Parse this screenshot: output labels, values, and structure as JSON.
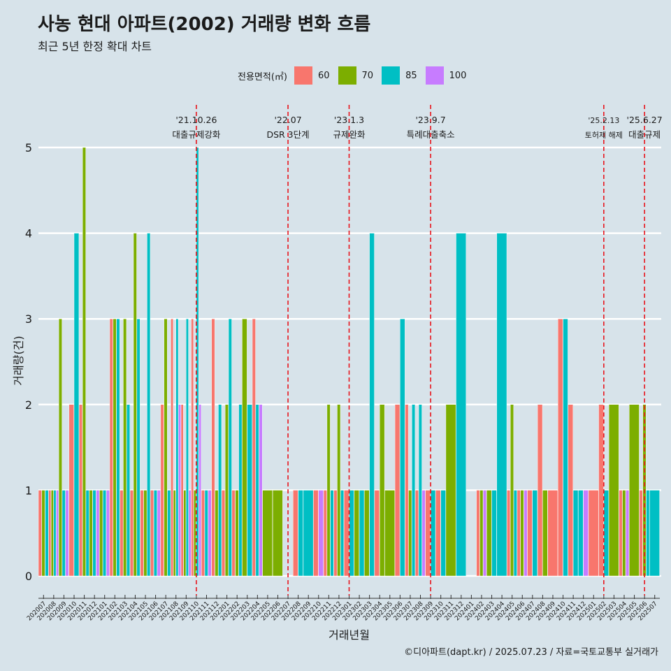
{
  "title": "사농 현대 아파트(2002) 거래량 변화 흐름",
  "subtitle": "최근 5년 한정 확대 차트",
  "footer": "©디아파트(dapt.kr) / 2025.07.23 / 자료=국토교통부 실거래가",
  "legend": {
    "title": "전용면적(㎡)",
    "items": [
      {
        "label": "60",
        "color": "#f8766d"
      },
      {
        "label": "70",
        "color": "#7cae00"
      },
      {
        "label": "85",
        "color": "#00bfc4"
      },
      {
        "label": "100",
        "color": "#c77cff"
      }
    ]
  },
  "chart_data": {
    "type": "bar",
    "xlabel": "거래년월",
    "ylabel": "거래량(건)",
    "ylim": [
      0,
      5
    ],
    "yticks": [
      0,
      1,
      2,
      3,
      4,
      5
    ],
    "months": [
      "202007",
      "202008",
      "202009",
      "202010",
      "202011",
      "202012",
      "202101",
      "202102",
      "202103",
      "202104",
      "202105",
      "202106",
      "202107",
      "202108",
      "202109",
      "202110",
      "202111",
      "202112",
      "202201",
      "202202",
      "202203",
      "202204",
      "202205",
      "202206",
      "202207",
      "202208",
      "202209",
      "202210",
      "202211",
      "202212",
      "202301",
      "202302",
      "202303",
      "202304",
      "202305",
      "202306",
      "202307",
      "202308",
      "202309",
      "202310",
      "202311",
      "202312",
      "202401",
      "202402",
      "202403",
      "202404",
      "202405",
      "202406",
      "202407",
      "202408",
      "202409",
      "202410",
      "202411",
      "202412",
      "202501",
      "202502",
      "202503",
      "202504",
      "202505",
      "202506",
      "202507"
    ],
    "bars": [
      {
        "month": "202007",
        "values": {
          "60": 1,
          "70": 1,
          "85": 1
        }
      },
      {
        "month": "202008",
        "values": {
          "60": 1,
          "70": 1,
          "85": 1,
          "100": 1
        }
      },
      {
        "month": "202009",
        "values": {
          "70": 3,
          "85": 1,
          "100": 1
        }
      },
      {
        "month": "202010",
        "values": {
          "60": 2,
          "85": 4
        }
      },
      {
        "month": "202011",
        "values": {
          "60": 2,
          "70": 5,
          "85": 1
        }
      },
      {
        "month": "202012",
        "values": {
          "70": 1,
          "85": 1,
          "100": 1
        }
      },
      {
        "month": "202101",
        "values": {
          "70": 1,
          "85": 1,
          "100": 1
        }
      },
      {
        "month": "202102",
        "values": {
          "60": 3,
          "70": 3,
          "85": 3
        }
      },
      {
        "month": "202103",
        "values": {
          "60": 1,
          "70": 3,
          "85": 2
        }
      },
      {
        "month": "202104",
        "values": {
          "60": 1,
          "70": 4,
          "85": 3
        }
      },
      {
        "month": "202105",
        "values": {
          "60": 1,
          "70": 1,
          "85": 4
        }
      },
      {
        "month": "202106",
        "values": {
          "60": 1,
          "85": 1,
          "100": 1
        }
      },
      {
        "month": "202107",
        "values": {
          "60": 2,
          "70": 3,
          "85": 1
        }
      },
      {
        "month": "202108",
        "values": {
          "60": 3,
          "70": 1,
          "85": 3,
          "100": 2
        }
      },
      {
        "month": "202109",
        "values": {
          "60": 2,
          "70": 1,
          "85": 3,
          "100": 1
        }
      },
      {
        "month": "202110",
        "values": {
          "60": 3,
          "70": 1,
          "85": 5,
          "100": 2
        }
      },
      {
        "month": "202111",
        "values": {
          "60": 1,
          "85": 1,
          "100": 1
        }
      },
      {
        "month": "202112",
        "values": {
          "60": 3,
          "70": 1,
          "85": 2
        }
      },
      {
        "month": "202201",
        "values": {
          "60": 1,
          "70": 2,
          "85": 3
        }
      },
      {
        "month": "202202",
        "values": {
          "60": 1,
          "70": 1,
          "85": 2
        }
      },
      {
        "month": "202203",
        "values": {
          "70": 3,
          "85": 2
        }
      },
      {
        "month": "202204",
        "values": {
          "60": 3,
          "85": 2,
          "100": 2
        }
      },
      {
        "month": "202205",
        "values": {
          "70": 1
        }
      },
      {
        "month": "202206",
        "values": {
          "70": 1
        }
      },
      {
        "month": "202207",
        "values": {}
      },
      {
        "month": "202208",
        "values": {
          "60": 1,
          "85": 1
        }
      },
      {
        "month": "202209",
        "values": {
          "85": 1
        }
      },
      {
        "month": "202210",
        "values": {
          "60": 1,
          "100": 1
        }
      },
      {
        "month": "202211",
        "values": {
          "60": 1,
          "70": 2,
          "85": 1
        }
      },
      {
        "month": "202212",
        "values": {
          "60": 1,
          "70": 2,
          "85": 1
        }
      },
      {
        "month": "202301",
        "values": {
          "60": 1,
          "85": 1
        }
      },
      {
        "month": "202302",
        "values": {
          "70": 1,
          "85": 1
        }
      },
      {
        "month": "202303",
        "values": {
          "70": 1,
          "85": 4
        }
      },
      {
        "month": "202304",
        "values": {
          "60": 1,
          "70": 2
        }
      },
      {
        "month": "202305",
        "values": {
          "70": 1
        }
      },
      {
        "month": "202306",
        "values": {
          "60": 2,
          "85": 3
        }
      },
      {
        "month": "202307",
        "values": {
          "60": 2,
          "70": 1,
          "85": 2
        }
      },
      {
        "month": "202308",
        "values": {
          "60": 1,
          "85": 2,
          "100": 1
        }
      },
      {
        "month": "202309",
        "values": {
          "60": 1,
          "85": 1
        }
      },
      {
        "month": "202310",
        "values": {
          "60": 1,
          "85": 1
        }
      },
      {
        "month": "202311",
        "values": {
          "70": 2
        }
      },
      {
        "month": "202312",
        "values": {
          "85": 4
        }
      },
      {
        "month": "202401",
        "values": {}
      },
      {
        "month": "202402",
        "values": {
          "60": 1,
          "70": 1,
          "100": 1
        }
      },
      {
        "month": "202403",
        "values": {
          "70": 1,
          "85": 1
        }
      },
      {
        "month": "202404",
        "values": {
          "85": 4
        }
      },
      {
        "month": "202405",
        "values": {
          "60": 1,
          "70": 2,
          "85": 1
        }
      },
      {
        "month": "202406",
        "values": {
          "60": 1,
          "70": 1,
          "100": 1
        }
      },
      {
        "month": "202407",
        "values": {
          "60": 1,
          "85": 1
        }
      },
      {
        "month": "202408",
        "values": {
          "60": 2,
          "70": 1
        }
      },
      {
        "month": "202409",
        "values": {
          "60": 1
        }
      },
      {
        "month": "202410",
        "values": {
          "60": 3,
          "85": 3
        }
      },
      {
        "month": "202411",
        "values": {
          "60": 2,
          "85": 1
        }
      },
      {
        "month": "202412",
        "values": {
          "85": 1,
          "100": 1
        }
      },
      {
        "month": "202501",
        "values": {
          "60": 1
        }
      },
      {
        "month": "202502",
        "values": {
          "60": 2,
          "85": 1
        }
      },
      {
        "month": "202503",
        "values": {
          "70": 2
        }
      },
      {
        "month": "202504",
        "values": {
          "60": 1,
          "70": 1,
          "100": 1
        }
      },
      {
        "month": "202505",
        "values": {
          "70": 2
        }
      },
      {
        "month": "202506",
        "values": {
          "60": 1,
          "70": 2,
          "85": 1
        }
      },
      {
        "month": "202507",
        "values": {
          "85": 1
        }
      }
    ],
    "annotations": [
      {
        "month": "202110",
        "date": "'21.10.26",
        "label": "대출규제강화"
      },
      {
        "month": "202207",
        "date": "'22.07",
        "label": "DSR 3단계"
      },
      {
        "month": "202301",
        "date": "'23.1.3",
        "label": "규제완화"
      },
      {
        "month": "202309",
        "date": "'23.9.7",
        "label": "특례대출축소"
      },
      {
        "month": "202502",
        "date": "'25.2.13",
        "label": "토허제 해제"
      },
      {
        "month": "202506",
        "date": "'25.6.27",
        "label": "대출규제"
      }
    ]
  }
}
